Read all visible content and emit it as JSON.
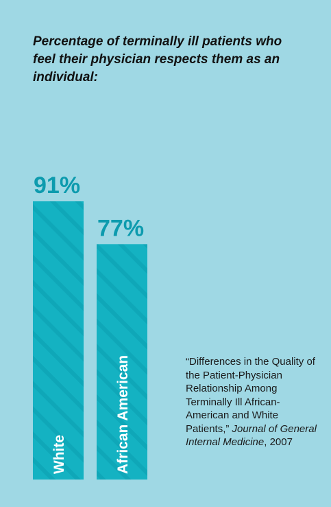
{
  "title": "Percentage of terminally ill patients who feel their physician respects them as an individual:",
  "colors": {
    "background": "#9fd8e4",
    "bar": "#14b2c2",
    "bar_stripe": "#0fa7b8",
    "value_label": "#0d9bae",
    "category_label": "#ffffff"
  },
  "chart_data": {
    "type": "bar",
    "categories": [
      "White",
      "African American"
    ],
    "values": [
      91,
      77
    ],
    "value_labels": [
      "91%",
      "77%"
    ],
    "title": "Percentage of terminally ill patients who feel their physician respects them as an individual:",
    "xlabel": "",
    "ylabel": "",
    "ylim": [
      0,
      100
    ],
    "grid": false,
    "legend": "none"
  },
  "source": {
    "plain_1": "“Differences in the Quality of the Patient-Physician Relationship Among Terminally Ill African-American and White Patients,” ",
    "journal": "Journal of General Internal Medicine",
    "plain_2": ", 2007"
  }
}
